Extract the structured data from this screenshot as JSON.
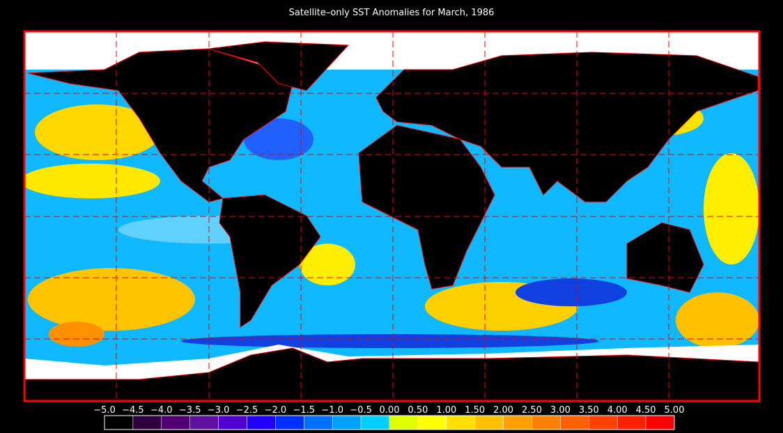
{
  "title": "Satellite–only SST Anomalies for March, 1986",
  "colorbar": {
    "labels": [
      "−5.0",
      "−4.5",
      "−4.0",
      "−3.5",
      "−3.0",
      "−2.5",
      "−2.0",
      "−1.5",
      "−1.0",
      "−0.5",
      "0.00",
      "0.50",
      "1.00",
      "1.50",
      "2.00",
      "2.50",
      "3.00",
      "3.50",
      "4.00",
      "4.50",
      "5.00"
    ],
    "colors": [
      "#000000",
      "#300040",
      "#500070",
      "#6010a0",
      "#5000d0",
      "#2000ff",
      "#0030ff",
      "#0070ff",
      "#00a0ff",
      "#00d0ff",
      "#e0ff00",
      "#ffff00",
      "#ffe000",
      "#ffc000",
      "#ffa000",
      "#ff8000",
      "#ff6000",
      "#ff4000",
      "#ff2000",
      "#ff0000"
    ]
  }
}
